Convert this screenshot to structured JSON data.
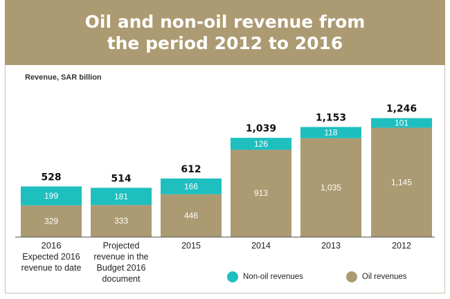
{
  "header": {
    "title": "Oil and non-oil revenue from the period 2012 to 2016"
  },
  "colors": {
    "oil": "#ac9a72",
    "non_oil": "#1fbfbf",
    "header": "#ac9a72"
  },
  "legend": {
    "non_oil": "Non-oil revenues",
    "oil": "Oil revenues"
  },
  "chart_data": {
    "type": "bar",
    "stacked": true,
    "title": "Oil and non-oil revenue from the period 2012 to 2016",
    "ylabel": "Revenue, SAR billion",
    "categories": [
      "2016 Expected 2016 revenue to date",
      "Projected revenue in the Budget 2016 document",
      "2015",
      "2014",
      "2013",
      "2012"
    ],
    "category_lines": [
      [
        "2016",
        "Expected 2016",
        "revenue to date"
      ],
      [
        "Projected",
        "revenue in the",
        "Budget 2016",
        "document"
      ],
      [
        "2015"
      ],
      [
        "2014"
      ],
      [
        "2013"
      ],
      [
        "2012"
      ]
    ],
    "series": [
      {
        "name": "Oil revenues",
        "values": [
          329,
          333,
          446,
          913,
          1035,
          1145
        ],
        "labels": [
          "329",
          "333",
          "446",
          "913",
          "1,035",
          "1,145"
        ]
      },
      {
        "name": "Non-oil revenues",
        "values": [
          199,
          181,
          166,
          126,
          118,
          101
        ],
        "labels": [
          "199",
          "181",
          "166",
          "126",
          "118",
          "101"
        ]
      }
    ],
    "totals": [
      528,
      514,
      612,
      1039,
      1153,
      1246
    ],
    "total_labels": [
      "528",
      "514",
      "612",
      "1,039",
      "1,153",
      "1,246"
    ],
    "ylim": [
      0,
      1300
    ],
    "grid": false,
    "legend_position": "bottom-right"
  }
}
